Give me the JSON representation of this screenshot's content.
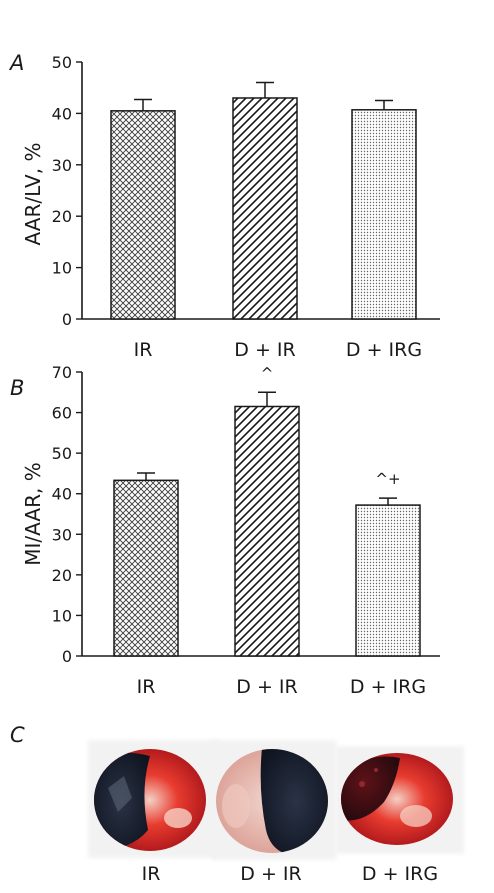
{
  "chart_data": [
    {
      "type": "bar",
      "panel": "A",
      "ylabel": "AAR/LV, %",
      "ylim": [
        0,
        50
      ],
      "yticks": [
        0,
        10,
        20,
        30,
        40,
        50
      ],
      "categories": [
        "IR",
        "D + IR",
        "D + IRG"
      ],
      "values": [
        40.5,
        43,
        40.7
      ],
      "errors": [
        2.2,
        3.0,
        1.8
      ],
      "annotations": [
        "",
        "",
        ""
      ],
      "patterns": [
        "crosshatch",
        "diagonal",
        "dots"
      ]
    },
    {
      "type": "bar",
      "panel": "B",
      "ylabel": "MI/AAR, %",
      "ylim": [
        0,
        70
      ],
      "yticks": [
        0,
        10,
        20,
        30,
        40,
        50,
        60,
        70
      ],
      "categories": [
        "IR",
        "D + IR",
        "D + IRG"
      ],
      "values": [
        43.3,
        61.5,
        37.2
      ],
      "errors": [
        1.8,
        3.5,
        1.7
      ],
      "annotations": [
        "",
        "^",
        "^+"
      ],
      "patterns": [
        "crosshatch",
        "diagonal",
        "dots"
      ]
    }
  ],
  "panel_c": {
    "label": "C",
    "captions": [
      "IR",
      "D + IR",
      "D + IRG"
    ]
  }
}
